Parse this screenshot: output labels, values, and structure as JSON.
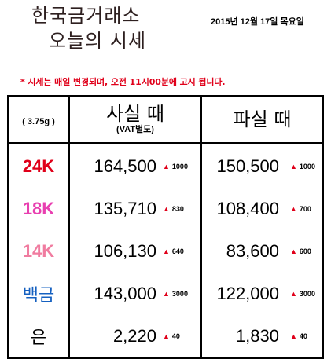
{
  "header": {
    "title_line1": "한국금거래소",
    "title_line2": "오늘의 시세",
    "date": "2015년 12월 17일 목요일"
  },
  "notice": "* 시세는 매일 변경되며, 오전 11시00분에 고시 됩니다.",
  "table": {
    "unit": "( 3.75g )",
    "buy_header": "사실 때",
    "buy_subheader": "(VAT별도)",
    "sell_header": "파실 때",
    "rows": [
      {
        "label": "24K",
        "color": "#e0001a",
        "buy": "164,500",
        "buy_change": "1000",
        "sell": "150,500",
        "sell_change": "1000"
      },
      {
        "label": "18K",
        "color": "#e83fb0",
        "buy": "135,710",
        "buy_change": "830",
        "sell": "108,400",
        "sell_change": "700"
      },
      {
        "label": "14K",
        "color": "#f07ca0",
        "buy": "106,130",
        "buy_change": "640",
        "sell": "83,600",
        "sell_change": "600"
      },
      {
        "label": "백금",
        "color": "#1560c0",
        "buy": "143,000",
        "buy_change": "3000",
        "sell": "122,000",
        "sell_change": "3000"
      },
      {
        "label": "은",
        "color": "#000000",
        "buy": "2,220",
        "buy_change": "40",
        "sell": "1,830",
        "sell_change": "40"
      }
    ]
  },
  "icons": {
    "change": "up-triangle-icon",
    "up_color": "#e0001a"
  }
}
